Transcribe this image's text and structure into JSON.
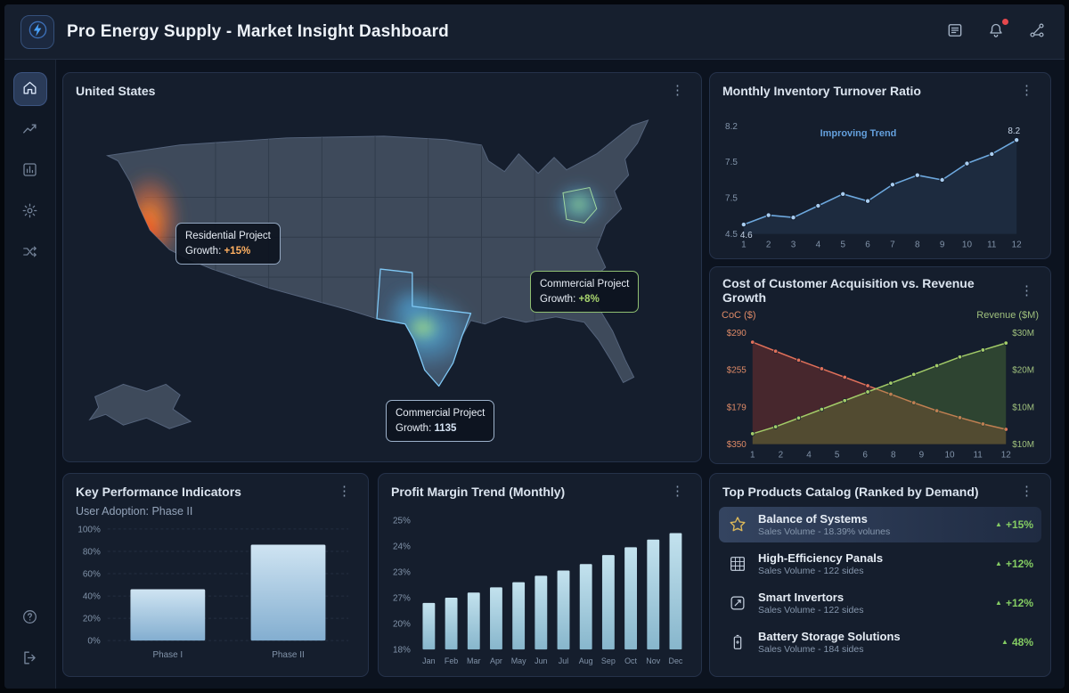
{
  "header": {
    "title": "Pro Energy Supply - Market Insight Dashboard"
  },
  "panels": {
    "map": {
      "title": "United States",
      "callouts": [
        {
          "label": "Residential Project",
          "prefix": "Growth:",
          "value": "+15%"
        },
        {
          "label": "Commercial Project",
          "prefix": "Growth:",
          "value": "+8%"
        },
        {
          "label": "Commercial Project",
          "prefix": "Growth:",
          "value": "1135"
        }
      ]
    },
    "turnover": {
      "title": "Monthly Inventory Turnover Ratio",
      "annotation": "Improving Trend",
      "start_label": "4.6",
      "end_label": "8.2",
      "y_ticks": [
        "8.2",
        "7.5",
        "7.5",
        "4.5"
      ],
      "x_ticks": [
        "1",
        "2",
        "3",
        "4",
        "5",
        "6",
        "7",
        "8",
        "9",
        "10",
        "11",
        "12"
      ],
      "chart_data": {
        "type": "line",
        "x": [
          1,
          2,
          3,
          4,
          5,
          6,
          7,
          8,
          9,
          10,
          11,
          12
        ],
        "values": [
          4.6,
          5.0,
          4.9,
          5.4,
          5.9,
          5.6,
          6.3,
          6.7,
          6.5,
          7.2,
          7.6,
          8.2
        ],
        "ylim": [
          4.2,
          8.8
        ],
        "color": "#6da8de",
        "series_name": "Inventory Turnover Ratio"
      }
    },
    "coc": {
      "title": "Cost of Customer Acquisition vs. Revenue Growth",
      "left_axis_label": "CoC ($)",
      "right_axis_label": "Revenue ($M)",
      "left_ticks": [
        "$290",
        "$255",
        "$179",
        "$350"
      ],
      "right_ticks": [
        "$30M",
        "$20M",
        "$10M",
        "$10M"
      ],
      "x_ticks": [
        "1",
        "2",
        "4",
        "5",
        "6",
        "8",
        "9",
        "10",
        "11",
        "12"
      ],
      "chart_data": {
        "type": "line",
        "x": [
          1,
          2,
          3,
          4,
          5,
          6,
          7,
          8,
          9,
          10,
          11,
          12
        ],
        "series": [
          {
            "name": "CoC ($)",
            "color": "#e0705a",
            "area": "rgba(190,62,48,0.30)",
            "ylim": [
              100,
              310
            ],
            "values": [
              292,
              275,
              258,
              242,
              226,
              210,
              194,
              178,
              163,
              150,
              138,
              128
            ]
          },
          {
            "name": "Revenue ($M)",
            "color": "#a3cc68",
            "area": "rgba(110,170,60,0.28)",
            "ylim": [
              0,
              32
            ],
            "values": [
              3,
              5,
              7.5,
              10,
              12.5,
              15,
              17.5,
              20,
              22.5,
              25,
              27,
              29
            ]
          }
        ]
      }
    },
    "kpi": {
      "title": "Key Performance Indicators",
      "subtitle": "User Adoption: Phase II",
      "y_ticks": [
        "100%",
        "80%",
        "60%",
        "40%",
        "20%",
        "0%"
      ],
      "chart_data": {
        "type": "bar",
        "categories": [
          "Phase I",
          "Phase II"
        ],
        "values": [
          46,
          86
        ],
        "ylim": [
          0,
          100
        ]
      }
    },
    "profit": {
      "title": "Profit Margin Trend (Monthly)",
      "y_ticks": [
        "25%",
        "24%",
        "23%",
        "27%",
        "20%",
        "18%"
      ],
      "chart_data": {
        "type": "bar",
        "categories": [
          "Jan",
          "Feb",
          "Mar",
          "Apr",
          "May",
          "Jun",
          "Jul",
          "Aug",
          "Sep",
          "Oct",
          "Nov",
          "Dec"
        ],
        "values": [
          36,
          40,
          44,
          48,
          52,
          57,
          61,
          66,
          73,
          79,
          85,
          90
        ],
        "ylim": [
          0,
          100
        ]
      }
    },
    "products": {
      "title": "Top Products Catalog (Ranked by Demand)",
      "items": [
        {
          "icon": "star",
          "name": "Balance of Systems",
          "sub": "Sales Volume - 18.39% volunes",
          "change": "+15%",
          "highlight": true
        },
        {
          "icon": "grid",
          "name": "High-Efficiency Panals",
          "sub": "Sales Volume - 122 sides",
          "change": "+12%",
          "highlight": false
        },
        {
          "icon": "inverter",
          "name": "Smart Invertors",
          "sub": "Sales Volume - 122 sides",
          "change": "+12%",
          "highlight": false
        },
        {
          "icon": "battery",
          "name": "Battery Storage Solutions",
          "sub": "Sales Volume - 184 sides",
          "change": "48%",
          "highlight": false
        }
      ]
    }
  }
}
